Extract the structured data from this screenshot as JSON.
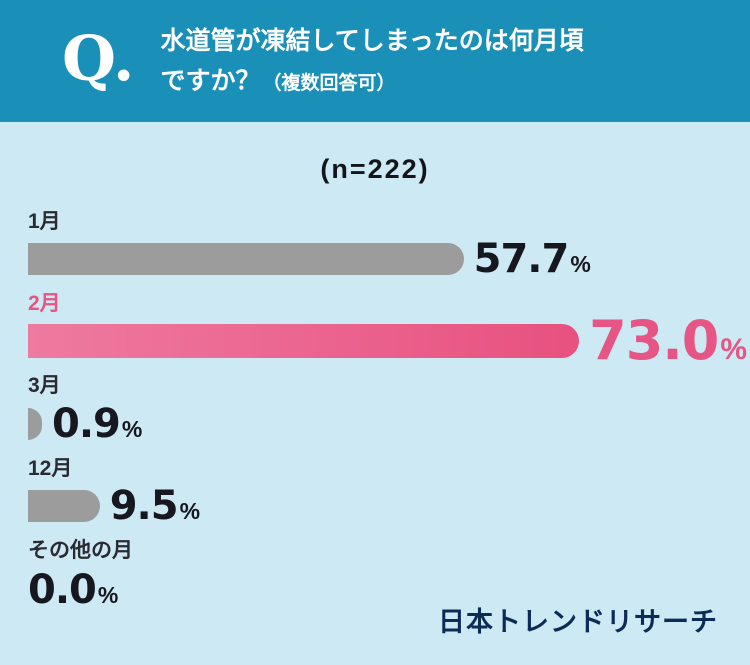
{
  "header": {
    "q_mark": "Q.",
    "title_line1": "水道管が凍結してしまったのは何月頃",
    "title_line2": "ですか？",
    "title_note": "（複数回答可）"
  },
  "chart": {
    "sample_label": "(n=222)",
    "rows": [
      {
        "label": "1月",
        "value": 57.7,
        "value_text": "57.7",
        "unit": "%",
        "highlight": false
      },
      {
        "label": "2月",
        "value": 73.0,
        "value_text": "73.0",
        "unit": "%",
        "highlight": true
      },
      {
        "label": "3月",
        "value": 0.9,
        "value_text": "0.9",
        "unit": "%",
        "highlight": false
      },
      {
        "label": "12月",
        "value": 9.5,
        "value_text": "9.5",
        "unit": "%",
        "highlight": false
      },
      {
        "label": "その他の月",
        "value": 0.0,
        "value_text": "0.0",
        "unit": "%",
        "highlight": false
      }
    ]
  },
  "chart_data": {
    "type": "bar",
    "orientation": "horizontal",
    "title": "水道管が凍結してしまったのは何月頃ですか？（複数回答可）",
    "sample_size": "(n=222)",
    "categories": [
      "1月",
      "2月",
      "3月",
      "12月",
      "その他の月"
    ],
    "values": [
      57.7,
      73.0,
      0.9,
      9.5,
      0.0
    ],
    "unit": "%",
    "xlim": [
      0,
      100
    ],
    "grid": false,
    "legend": false,
    "highlight_category": "2月"
  },
  "footer": {
    "brand": "日本トレンドリサーチ"
  },
  "colors": {
    "header_bg": "#1a8fb7",
    "page_bg": "#cde9f4",
    "bar_gray": "#9c9c9c",
    "bar_pink": "#e85180",
    "bar_pink_light": "#ee7aa0",
    "pink_text": "#e65583",
    "logo_navy": "#0d2b57"
  }
}
